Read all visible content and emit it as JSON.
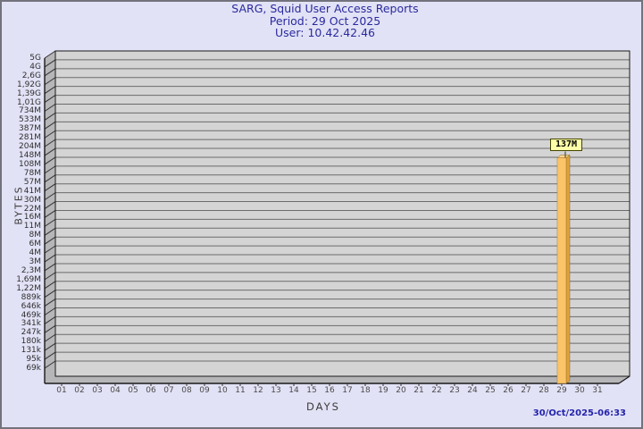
{
  "window": {
    "bg_color": "#e2e2f6",
    "border_color": "#73737e"
  },
  "header": {
    "title": "SARG, Squid User Access Reports",
    "period_line": "Period: 29 Oct 2025",
    "user_line": "User: 10.42.42.46",
    "text_color": "#2a2a9e"
  },
  "footer": {
    "timestamp": "30/Oct/2025-06:33",
    "text_color": "#2424ad"
  },
  "chart_data": {
    "type": "bar",
    "title": "SARG, Squid User Access Reports",
    "subtitle": "Period: 29 Oct 2025 — User: 10.42.42.46",
    "xlabel": "DAYS",
    "ylabel": "BYTES",
    "y_scale": "log",
    "ylim": [
      50000,
      5000000000
    ],
    "grid": true,
    "style": "3d-bar",
    "y_tick_labels": [
      "5G",
      "4G",
      "2,6G",
      "1,92G",
      "1,39G",
      "1,01G",
      "734M",
      "533M",
      "387M",
      "281M",
      "204M",
      "148M",
      "108M",
      "78M",
      "57M",
      "41M",
      "30M",
      "22M",
      "16M",
      "11M",
      "8M",
      "6M",
      "4M",
      "3M",
      "2,3M",
      "1,69M",
      "1,22M",
      "889k",
      "646k",
      "469k",
      "341k",
      "247k",
      "180k",
      "131k",
      "95k",
      "69k"
    ],
    "categories": [
      "01",
      "02",
      "03",
      "04",
      "05",
      "06",
      "07",
      "08",
      "09",
      "10",
      "11",
      "12",
      "13",
      "14",
      "15",
      "16",
      "17",
      "18",
      "19",
      "20",
      "21",
      "22",
      "23",
      "24",
      "25",
      "26",
      "27",
      "28",
      "29",
      "30",
      "31"
    ],
    "values": [
      0,
      0,
      0,
      0,
      0,
      0,
      0,
      0,
      0,
      0,
      0,
      0,
      0,
      0,
      0,
      0,
      0,
      0,
      0,
      0,
      0,
      0,
      0,
      0,
      0,
      0,
      0,
      0,
      137000000,
      0,
      0
    ],
    "bar_day": "29",
    "bar_value_label": "137M",
    "colors": {
      "plot_bg": "#d4d4d4",
      "grid_line": "#6b6b6b",
      "wall": "#b6b6b9",
      "axis_line": "#1a1a1a",
      "bar_front": "#fcc469",
      "bar_side": "#dfa13e",
      "bar_top": "#fdd78e",
      "value_label_bg": "#ffffa8"
    }
  }
}
